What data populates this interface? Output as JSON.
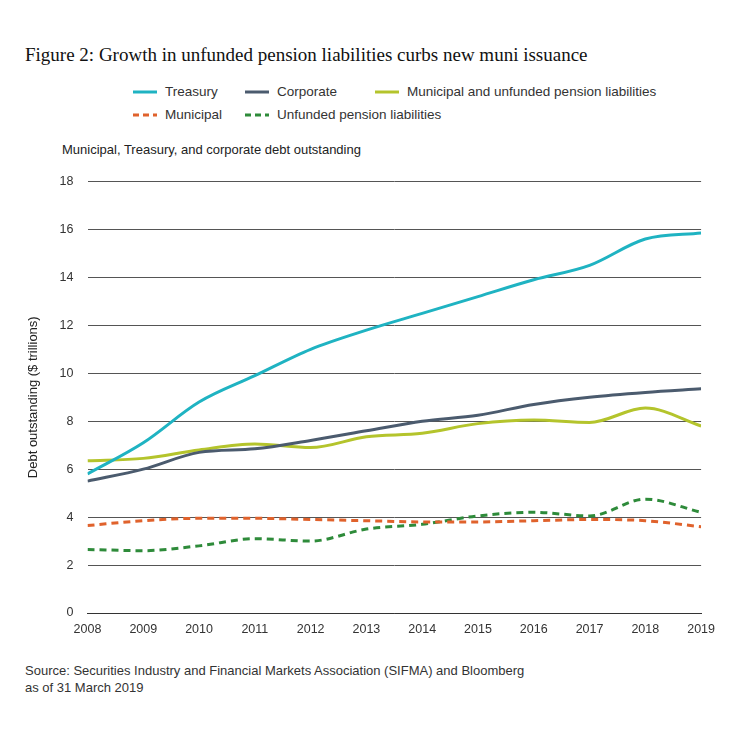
{
  "chart_data": {
    "type": "line",
    "title": "Figure 2: Growth in unfunded pension liabilities curbs new muni issuance",
    "subtitle": "Municipal, Treasury, and corporate debt outstanding",
    "y_label": "Debt outstanding ($ trillions)",
    "source": [
      "Source: Securities Industry and Financial Markets Association (SIFMA) and Bloomberg",
      "as of 31 March 2019"
    ],
    "x": [
      2008,
      2009,
      2010,
      2011,
      2012,
      2013,
      2014,
      2015,
      2016,
      2017,
      2018,
      2019
    ],
    "xlim": [
      2008,
      2019
    ],
    "xticks": [
      2008,
      2009,
      2010,
      2011,
      2012,
      2013,
      2014,
      2015,
      2016,
      2017,
      2018,
      2019
    ],
    "ylim": [
      0,
      18
    ],
    "yticks": [
      0,
      2,
      4,
      6,
      8,
      10,
      12,
      14,
      16,
      18
    ],
    "grid": true,
    "legend": "top",
    "series": [
      {
        "name": "Treasury",
        "color": "#1fb3c2",
        "line_style": "solid",
        "values": [
          5.8,
          7.1,
          8.8,
          9.9,
          11.0,
          11.8,
          12.5,
          13.2,
          13.9,
          14.5,
          15.6,
          15.85
        ]
      },
      {
        "name": "Corporate",
        "color": "#4b5b6e",
        "line_style": "solid",
        "values": [
          5.5,
          6.0,
          6.7,
          6.85,
          7.2,
          7.6,
          8.0,
          8.25,
          8.7,
          9.0,
          9.2,
          9.35
        ]
      },
      {
        "name": "Municipal and unfunded pension liabilities",
        "color": "#b4c42c",
        "line_style": "solid",
        "values": [
          6.35,
          6.45,
          6.8,
          7.05,
          6.9,
          7.35,
          7.5,
          7.9,
          8.05,
          7.95,
          8.55,
          7.8
        ]
      },
      {
        "name": "Municipal",
        "color": "#e0622c",
        "line_style": "dashed",
        "values": [
          3.65,
          3.85,
          3.95,
          3.95,
          3.9,
          3.85,
          3.8,
          3.8,
          3.85,
          3.9,
          3.85,
          3.6
        ]
      },
      {
        "name": "Unfunded pension liabilities",
        "color": "#2e8b3a",
        "line_style": "dashed",
        "values": [
          2.65,
          2.6,
          2.8,
          3.1,
          3.0,
          3.5,
          3.7,
          4.05,
          4.2,
          4.05,
          4.75,
          4.2
        ]
      }
    ]
  }
}
